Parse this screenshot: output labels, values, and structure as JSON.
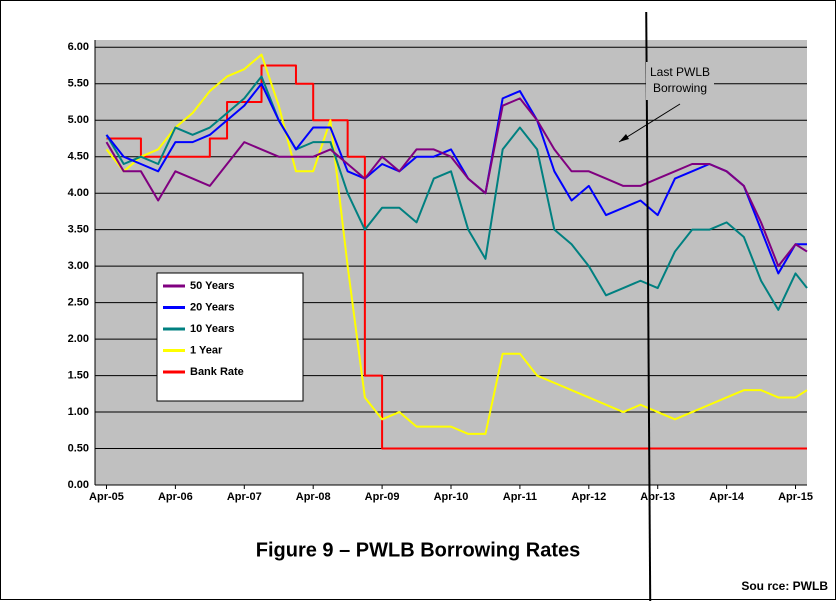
{
  "chart_data": {
    "type": "line",
    "title": "Figure 9 – PWLB Borrowing Rates",
    "source": "Sou rce: PWLB",
    "x": [
      "Apr-05",
      "Jul-05",
      "Oct-05",
      "Jan-06",
      "Apr-06",
      "Jul-06",
      "Oct-06",
      "Jan-07",
      "Apr-07",
      "Jul-07",
      "Oct-07",
      "Jan-08",
      "Apr-08",
      "Jul-08",
      "Oct-08",
      "Jan-09",
      "Apr-09",
      "Jul-09",
      "Oct-09",
      "Jan-10",
      "Apr-10",
      "Jul-10",
      "Oct-10",
      "Jan-11",
      "Apr-11",
      "Jul-11",
      "Oct-11",
      "Jan-12",
      "Apr-12",
      "Jul-12",
      "Oct-12",
      "Jan-13",
      "Apr-13",
      "Jul-13",
      "Oct-13",
      "Jan-14",
      "Apr-14",
      "Jul-14",
      "Oct-14",
      "Jan-15",
      "Apr-15",
      "Jun-15"
    ],
    "series": [
      {
        "name": "50 Years",
        "color": "#800080",
        "values": [
          4.7,
          4.3,
          4.3,
          3.9,
          4.3,
          4.2,
          4.1,
          4.4,
          4.7,
          4.6,
          4.5,
          4.5,
          4.5,
          4.6,
          4.4,
          4.2,
          4.5,
          4.3,
          4.6,
          4.6,
          4.5,
          4.2,
          4.0,
          5.2,
          5.3,
          5.0,
          4.6,
          4.3,
          4.3,
          4.2,
          4.1,
          4.1,
          4.2,
          4.3,
          4.4,
          4.4,
          4.3,
          4.1,
          3.6,
          3.0,
          3.3,
          3.2
        ]
      },
      {
        "name": "20 Years",
        "color": "#0000ff",
        "values": [
          4.8,
          4.5,
          4.4,
          4.3,
          4.7,
          4.7,
          4.8,
          5.0,
          5.2,
          5.5,
          5.0,
          4.6,
          4.9,
          4.9,
          4.3,
          4.2,
          4.4,
          4.3,
          4.5,
          4.5,
          4.6,
          4.2,
          4.0,
          5.3,
          5.4,
          5.0,
          4.3,
          3.9,
          4.1,
          3.7,
          3.8,
          3.9,
          3.7,
          4.2,
          4.3,
          4.4,
          4.3,
          4.1,
          3.5,
          2.9,
          3.3,
          3.3
        ]
      },
      {
        "name": "10 Years",
        "color": "#008080",
        "values": [
          4.8,
          4.4,
          4.5,
          4.4,
          4.9,
          4.8,
          4.9,
          5.1,
          5.3,
          5.6,
          5.0,
          4.6,
          4.7,
          4.7,
          4.0,
          3.5,
          3.8,
          3.8,
          3.6,
          4.2,
          4.3,
          3.5,
          3.1,
          4.6,
          4.9,
          4.6,
          3.5,
          3.3,
          3.0,
          2.6,
          2.7,
          2.8,
          2.7,
          3.2,
          3.5,
          3.5,
          3.6,
          3.4,
          2.8,
          2.4,
          2.9,
          2.7
        ]
      },
      {
        "name": "1 Year",
        "color": "#ffff00",
        "values": [
          4.6,
          4.3,
          4.5,
          4.6,
          4.9,
          5.1,
          5.4,
          5.6,
          5.7,
          5.9,
          5.2,
          4.3,
          4.3,
          5.0,
          3.0,
          1.2,
          0.9,
          1.0,
          0.8,
          0.8,
          0.8,
          0.7,
          0.7,
          1.8,
          1.8,
          1.5,
          1.4,
          1.3,
          1.2,
          1.1,
          1.0,
          1.1,
          1.0,
          0.9,
          1.0,
          1.1,
          1.2,
          1.3,
          1.3,
          1.2,
          1.2,
          1.3
        ]
      },
      {
        "name": "Bank Rate",
        "color": "#ff0000",
        "step": true,
        "values": [
          4.75,
          4.75,
          4.5,
          4.5,
          4.5,
          4.5,
          4.75,
          5.25,
          5.25,
          5.75,
          5.75,
          5.5,
          5.0,
          5.0,
          4.5,
          1.5,
          0.5,
          0.5,
          0.5,
          0.5,
          0.5,
          0.5,
          0.5,
          0.5,
          0.5,
          0.5,
          0.5,
          0.5,
          0.5,
          0.5,
          0.5,
          0.5,
          0.5,
          0.5,
          0.5,
          0.5,
          0.5,
          0.5,
          0.5,
          0.5,
          0.5,
          0.5
        ]
      }
    ],
    "xlim": [
      "Feb-05",
      "Jun-15"
    ],
    "xticks": [
      "Apr-05",
      "Apr-06",
      "Apr-07",
      "Apr-08",
      "Apr-09",
      "Apr-10",
      "Apr-11",
      "Apr-12",
      "Apr-13",
      "Apr-14",
      "Apr-15"
    ],
    "ylim": [
      0,
      6.1
    ],
    "yticks": [
      {
        "value": 0,
        "label": "0.00"
      },
      {
        "value": 0.5,
        "label": "0.50"
      },
      {
        "value": 1,
        "label": "1.00"
      },
      {
        "value": 1.5,
        "label": "1.50"
      },
      {
        "value": 2,
        "label": "2.00"
      },
      {
        "value": 2.5,
        "label": "2.50"
      },
      {
        "value": 3,
        "label": "3.00"
      },
      {
        "value": 3.5,
        "label": "3.50"
      },
      {
        "value": 4,
        "label": "4.00"
      },
      {
        "value": 4.5,
        "label": "4.50"
      },
      {
        "value": 5,
        "label": "5.00"
      },
      {
        "value": 5.5,
        "label": "5.50"
      },
      {
        "value": 6,
        "label": "6.00"
      }
    ],
    "grid": true,
    "legend": "lower-left",
    "annotation": {
      "lines": [
        "Last PWLB",
        "Borrowing"
      ],
      "x": "Feb-13"
    }
  }
}
